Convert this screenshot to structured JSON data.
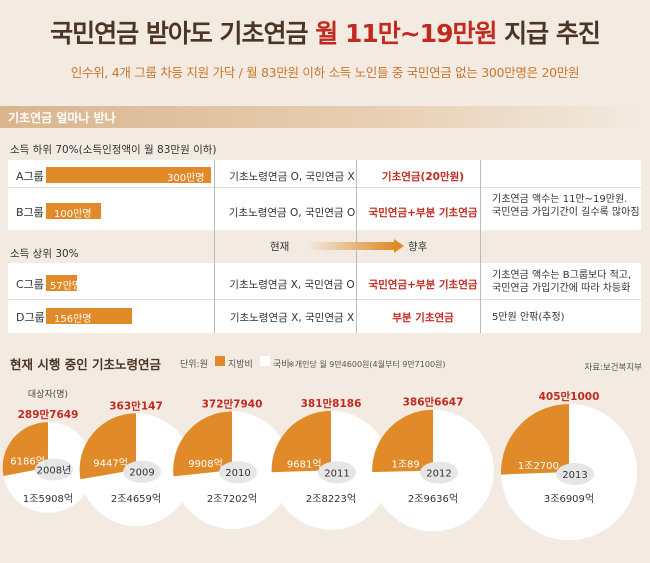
{
  "header": {
    "title_part1": "국민연금 받아도 기초연금 ",
    "title_highlight": "월 11만~19만원",
    "title_part2": " 지급 추진",
    "subtitle": "인수위, 4개 그룹 차등 지원 가닥  /  월 83만원 이하 소득 노인들 중 국민연금 없는 300만명은 20만원"
  },
  "section": {
    "label": "기초연금 얼마나 받나"
  },
  "lower_group": {
    "label": "소득 하위 70%(소득인정액이 월 83만원 이하)"
  },
  "upper_group": {
    "label": "소득 상위 30%"
  },
  "flow": {
    "now": "현재",
    "after": "향후"
  },
  "groups": [
    {
      "name": "A그룹",
      "people_label": "300만명",
      "people": 300,
      "now": "기초노령연금 O, 국민연금 X",
      "after": "기초연금(20만원)"
    },
    {
      "name": "B그룹",
      "people_label": "100만명",
      "people": 100,
      "now": "기초노령연금 O, 국민연금 O",
      "after": "국민연금+부분 기초연금"
    },
    {
      "name": "C그룹",
      "people_label": "57만명",
      "people": 57,
      "now": "기초노령연금 X, 국민연금 O",
      "after": "국민연금+부분 기초연금"
    },
    {
      "name": "D그룹",
      "people_label": "156만명",
      "people": 156,
      "now": "기초노령연금 X, 국민연금 X",
      "after": "부분 기초연금"
    }
  ],
  "notes": {
    "b_line1": "기초연금 액수는 11만~19만원.",
    "b_line2": "국민연금 가입기간이 길수록 많아짐",
    "c_line1": "기초연금 액수는 B그룹보다 적고,",
    "c_line2": "국민연금 가입기간에 따라 차등화",
    "d": "5만원 안팎(추정)"
  },
  "pies_section": {
    "title": "현재 시행 중인 기초노령연금",
    "unit": "단위:원",
    "legend_local": "지방비",
    "legend_national": "국비",
    "footnote": "※개인당 월 9만4600원(4월부터 9만7100원)",
    "source": "자료:보건복지부",
    "recipients_label": "대상자(명)"
  },
  "colors": {
    "local": "#e08a2a",
    "national": "#ffffff",
    "accent": "#c22a1f"
  },
  "chart_data": {
    "type": "pie",
    "title": "현재 시행 중인 기초노령연금",
    "series_names": [
      "지방비",
      "국비"
    ],
    "years": [
      {
        "year": "2008년",
        "recipients": "289만7649",
        "local": "6186억",
        "local_value": 6186,
        "national": "1조5908억",
        "national_value": 15908
      },
      {
        "year": "2009",
        "recipients": "363만147",
        "local": "9447억",
        "local_value": 9447,
        "national": "2조4659억",
        "national_value": 24659
      },
      {
        "year": "2010",
        "recipients": "372만7940",
        "local": "9908억",
        "local_value": 9908,
        "national": "2조7202억",
        "national_value": 27202
      },
      {
        "year": "2011",
        "recipients": "381만8186",
        "local": "9681억",
        "local_value": 9681,
        "national": "2조8223억",
        "national_value": 28223
      },
      {
        "year": "2012",
        "recipients": "386만6647",
        "local": "1조89",
        "local_value": 10089,
        "national": "2조9636억",
        "national_value": 29636
      },
      {
        "year": "2013",
        "recipients": "405만1000",
        "local": "1조2700",
        "local_value": 12700,
        "national": "3조6909억",
        "national_value": 36909
      }
    ]
  }
}
